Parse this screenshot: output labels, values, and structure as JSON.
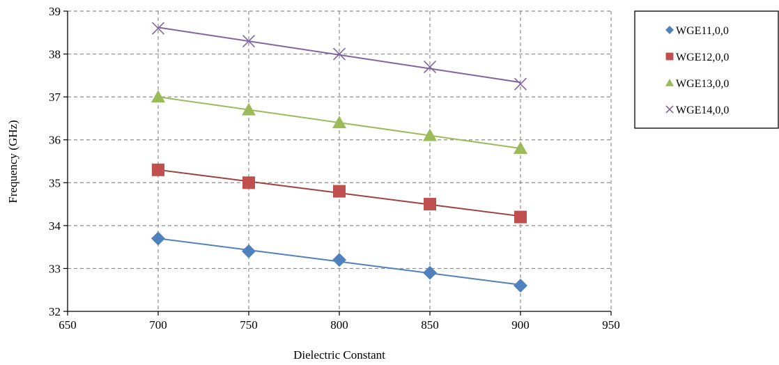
{
  "chart_data": {
    "type": "line",
    "title": "",
    "xlabel": "Dielectric Constant",
    "ylabel": "Frequency (GHz)",
    "xlim": [
      650,
      950
    ],
    "ylim": [
      32,
      39
    ],
    "xticks": [
      650,
      700,
      750,
      800,
      850,
      900,
      950
    ],
    "yticks": [
      32,
      33,
      34,
      35,
      36,
      37,
      38,
      39
    ],
    "grid": true,
    "legend_position": "right",
    "x": [
      700,
      750,
      800,
      850,
      900
    ],
    "series": [
      {
        "name": "WGE11,0,0",
        "marker": "diamond",
        "color": "#4f81bd",
        "values": [
          33.7,
          33.4,
          33.2,
          32.9,
          32.6
        ]
      },
      {
        "name": "WGE12,0,0",
        "marker": "square",
        "color": "#c0504d",
        "line_color": "#a0403d",
        "values": [
          35.3,
          35.0,
          34.8,
          34.5,
          34.2
        ]
      },
      {
        "name": "WGE13,0,0",
        "marker": "triangle",
        "color": "#9bbb59",
        "values": [
          37.0,
          36.7,
          36.4,
          36.1,
          35.8
        ]
      },
      {
        "name": "WGE14,0,0",
        "marker": "x",
        "color": "#8064a2",
        "values": [
          38.6,
          38.3,
          38.0,
          37.7,
          37.3
        ]
      }
    ]
  }
}
